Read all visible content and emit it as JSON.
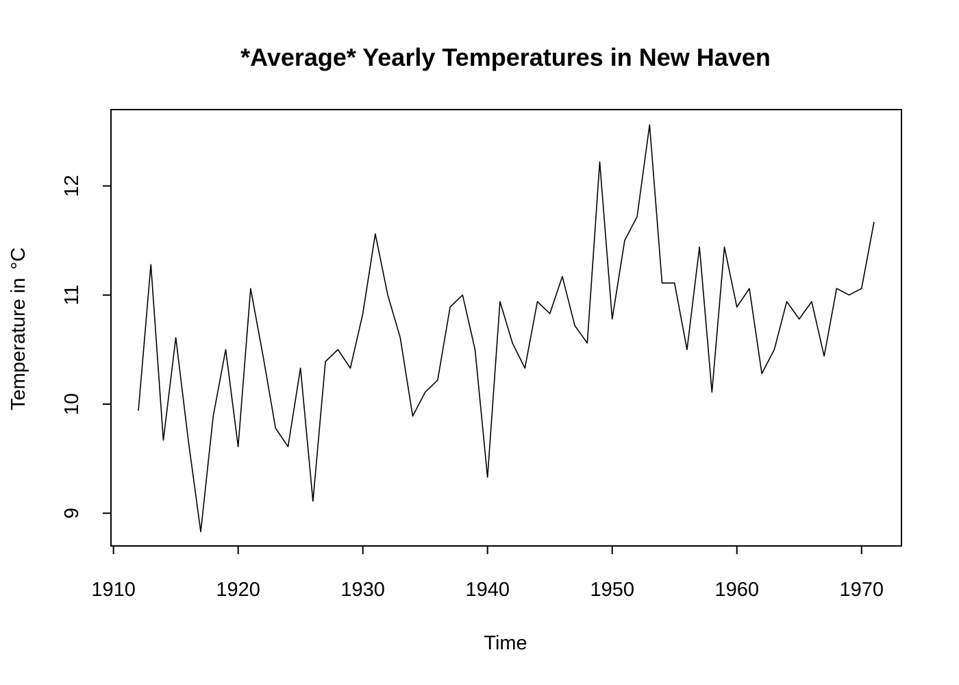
{
  "chart_data": {
    "type": "line",
    "title": "*Average* Yearly Temperatures in New Haven",
    "xlabel": "Time",
    "ylabel": "Temperature in",
    "ylabel_unit": "°C",
    "xlim": [
      1909.8,
      1973.2
    ],
    "ylim": [
      8.7,
      12.7
    ],
    "xticks": [
      1910,
      1920,
      1930,
      1940,
      1950,
      1960,
      1970
    ],
    "yticks": [
      9,
      10,
      11,
      12
    ],
    "grid": false,
    "legend": "none",
    "series": [
      {
        "x": [
          1912,
          1913,
          1914,
          1915,
          1916,
          1917,
          1918,
          1919,
          1920,
          1921,
          1922,
          1923,
          1924,
          1925,
          1926,
          1927,
          1928,
          1929,
          1930,
          1931,
          1932,
          1933,
          1934,
          1935,
          1936,
          1937,
          1938,
          1939,
          1940,
          1941,
          1942,
          1943,
          1944,
          1945,
          1946,
          1947,
          1948,
          1949,
          1950,
          1951,
          1952,
          1953,
          1954,
          1955,
          1956,
          1957,
          1958,
          1959,
          1960,
          1961,
          1962,
          1963,
          1964,
          1965,
          1966,
          1967,
          1968,
          1969,
          1970,
          1971
        ],
        "y": [
          9.94,
          11.28,
          9.67,
          10.61,
          9.67,
          8.83,
          9.89,
          10.5,
          9.61,
          11.06,
          10.44,
          9.78,
          9.61,
          10.33,
          9.11,
          10.39,
          10.5,
          10.33,
          10.83,
          11.56,
          11.0,
          10.61,
          9.89,
          10.11,
          10.22,
          10.89,
          11.0,
          10.5,
          9.33,
          10.94,
          10.56,
          10.33,
          10.94,
          10.83,
          11.17,
          10.72,
          10.56,
          12.22,
          10.78,
          11.5,
          11.72,
          12.56,
          11.11,
          11.11,
          10.5,
          11.44,
          10.11,
          11.44,
          10.89,
          11.06,
          10.28,
          10.5,
          10.94,
          10.78,
          10.94,
          10.44,
          11.06,
          11.0,
          11.06,
          11.67
        ]
      }
    ]
  }
}
